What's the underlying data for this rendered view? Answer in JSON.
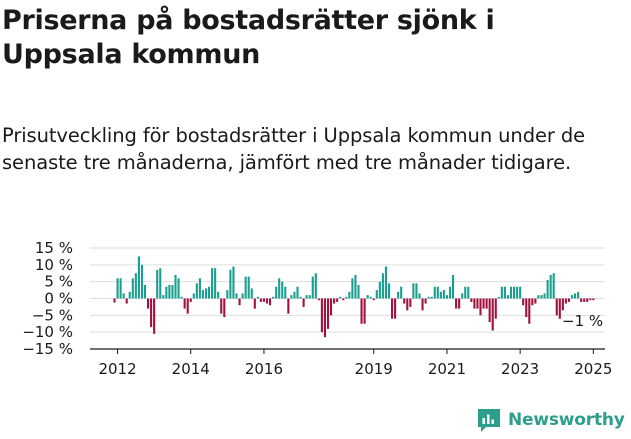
{
  "title": "Priserna på bostadsrätter sjönk i Uppsala kommun",
  "subtitle": "Prisutveckling för bostadsrätter i Uppsala kommun under de senaste tre månaderna, jämfört med tre månader tidigare.",
  "brand": "Newsworthy",
  "colors": {
    "positive": "#1a9e8f",
    "negative": "#a0113f",
    "brand": "#2e9e8c",
    "grid": "#dddddd"
  },
  "chart_data": {
    "type": "bar",
    "unit": "%",
    "ylim": [
      -15,
      15
    ],
    "yticks": [
      15,
      10,
      5,
      0,
      -5,
      -10,
      -15
    ],
    "ytick_labels": [
      "15 %",
      "10 %",
      "5 %",
      "0 %",
      "−5 %",
      "−10 %",
      "−15 %"
    ],
    "xticks": [
      "2012",
      "2014",
      "2016",
      "2019",
      "2021",
      "2023",
      "2025"
    ],
    "annotation": "−1 %",
    "x_start": "2011-12",
    "x_end": "2025-08",
    "values": [
      -1.2,
      6.0,
      6.0,
      1.5,
      -1.5,
      2.0,
      6.0,
      7.5,
      12.5,
      10.0,
      4.0,
      -3.0,
      -8.5,
      -10.5,
      8.5,
      9.0,
      1.0,
      3.5,
      4.0,
      4.0,
      7.0,
      6.0,
      0.5,
      -3.0,
      -4.5,
      -1.0,
      1.5,
      4.5,
      6.0,
      2.5,
      3.0,
      3.5,
      9.0,
      9.0,
      2.0,
      -4.5,
      -5.5,
      2.5,
      8.5,
      9.5,
      1.5,
      -2.0,
      1.5,
      6.5,
      6.5,
      3.0,
      -3.0,
      0.5,
      -1.0,
      -1.0,
      -1.5,
      -2.0,
      0.5,
      3.5,
      6.0,
      5.0,
      3.5,
      -4.5,
      1.0,
      2.0,
      3.5,
      0.5,
      -2.5,
      1.0,
      1.0,
      6.5,
      7.5,
      -0.5,
      -10.0,
      -11.5,
      -9.0,
      -5.0,
      -1.5,
      -1.0,
      0.5,
      -0.5,
      0.5,
      2.0,
      6.0,
      7.0,
      4.0,
      -7.5,
      -7.5,
      1.0,
      0.5,
      -0.5,
      2.5,
      5.0,
      7.5,
      9.5,
      4.5,
      -6.0,
      -6.0,
      2.0,
      3.5,
      -1.5,
      -3.5,
      -2.5,
      4.5,
      4.5,
      1.5,
      -3.5,
      -1.5,
      0.5,
      0.5,
      3.5,
      3.5,
      2.0,
      2.5,
      1.0,
      3.5,
      7.0,
      -3.0,
      -3.0,
      1.5,
      3.5,
      3.5,
      -1.0,
      -3.0,
      -3.0,
      -5.0,
      -3.0,
      -3.0,
      -7.0,
      -9.5,
      -6.0,
      0.5,
      3.5,
      3.5,
      1.0,
      3.5,
      3.5,
      3.5,
      3.5,
      -2.0,
      -5.5,
      -7.5,
      -2.0,
      -1.5,
      1.0,
      1.0,
      1.5,
      5.5,
      7.0,
      7.5,
      -5.0,
      -6.0,
      -3.5,
      -1.5,
      -1.0,
      1.0,
      1.5,
      2.0,
      -1.0,
      -1.0,
      -1.0,
      -0.5,
      -0.5
    ]
  }
}
